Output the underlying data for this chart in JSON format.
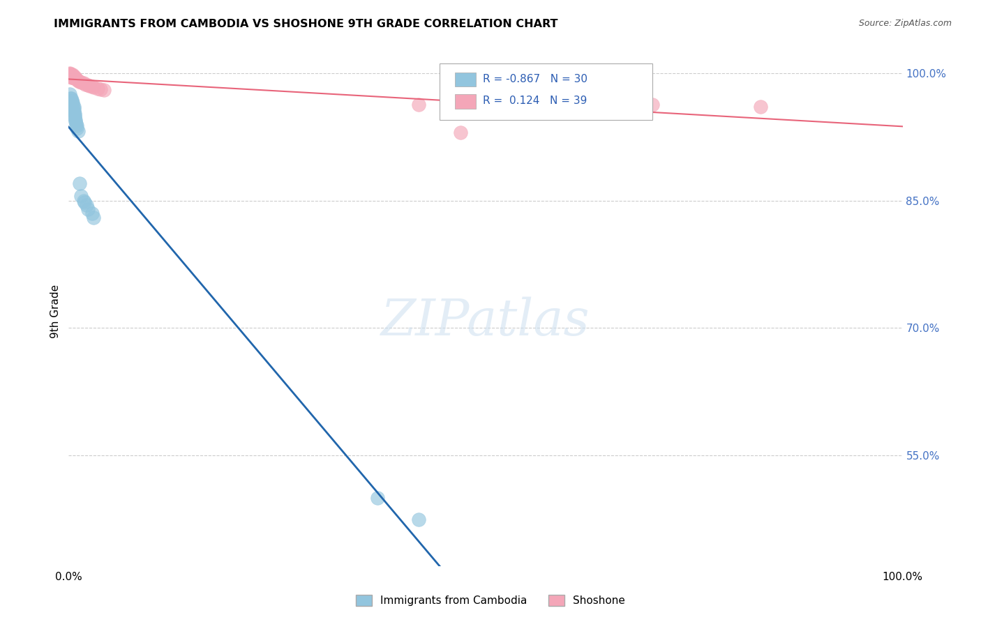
{
  "title": "IMMIGRANTS FROM CAMBODIA VS SHOSHONE 9TH GRADE CORRELATION CHART",
  "source": "Source: ZipAtlas.com",
  "ylabel": "9th Grade",
  "blue_R": -0.867,
  "blue_N": 30,
  "pink_R": 0.124,
  "pink_N": 39,
  "blue_color": "#92c5de",
  "pink_color": "#f4a6b8",
  "blue_line_color": "#2166ac",
  "pink_line_color": "#e8647a",
  "legend_label_blue": "Immigrants from Cambodia",
  "legend_label_pink": "Shoshone",
  "blue_points_x": [
    0.001,
    0.002,
    0.003,
    0.004,
    0.004,
    0.005,
    0.005,
    0.005,
    0.006,
    0.006,
    0.006,
    0.007,
    0.007,
    0.007,
    0.008,
    0.008,
    0.009,
    0.01,
    0.01,
    0.011,
    0.013,
    0.015,
    0.018,
    0.019,
    0.021,
    0.023,
    0.028,
    0.03,
    0.37,
    0.42
  ],
  "blue_points_y": [
    0.975,
    0.97,
    0.97,
    0.968,
    0.965,
    0.965,
    0.962,
    0.958,
    0.96,
    0.958,
    0.955,
    0.952,
    0.95,
    0.948,
    0.945,
    0.943,
    0.94,
    0.938,
    0.935,
    0.932,
    0.87,
    0.855,
    0.85,
    0.848,
    0.845,
    0.84,
    0.835,
    0.83,
    0.5,
    0.475
  ],
  "pink_points_x": [
    0.001,
    0.001,
    0.001,
    0.002,
    0.002,
    0.002,
    0.002,
    0.003,
    0.003,
    0.003,
    0.003,
    0.004,
    0.004,
    0.005,
    0.005,
    0.005,
    0.006,
    0.006,
    0.007,
    0.008,
    0.009,
    0.01,
    0.011,
    0.013,
    0.015,
    0.018,
    0.02,
    0.023,
    0.025,
    0.028,
    0.03,
    0.035,
    0.038,
    0.042,
    0.42,
    0.47,
    0.62,
    0.7,
    0.83
  ],
  "pink_points_y": [
    1.0,
    0.999,
    0.998,
    0.999,
    0.998,
    0.997,
    0.996,
    0.998,
    0.997,
    0.996,
    0.995,
    0.997,
    0.996,
    0.998,
    0.997,
    0.996,
    0.995,
    0.994,
    0.996,
    0.994,
    0.993,
    0.992,
    0.991,
    0.99,
    0.989,
    0.988,
    0.987,
    0.986,
    0.985,
    0.984,
    0.983,
    0.982,
    0.981,
    0.98,
    0.963,
    0.93,
    0.965,
    0.963,
    0.96
  ],
  "ytick_positions": [
    0.55,
    0.7,
    0.85,
    1.0
  ],
  "ytick_labels": [
    "55.0%",
    "70.0%",
    "85.0%",
    "100.0%"
  ],
  "ymin": 0.42,
  "ymax": 1.02,
  "xmin": 0.0,
  "xmax": 1.0
}
